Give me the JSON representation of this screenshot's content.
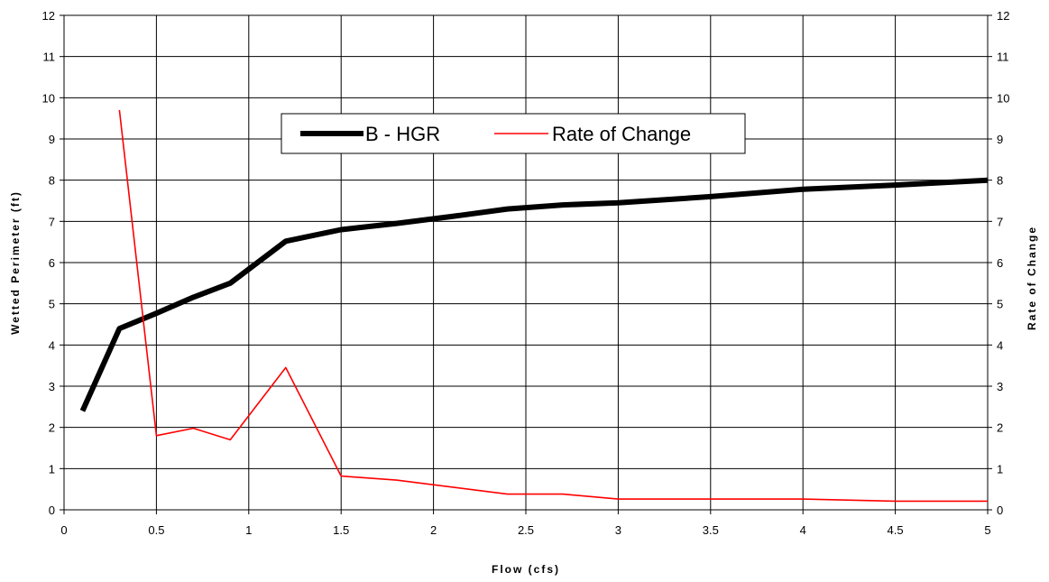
{
  "chart_data": {
    "type": "line",
    "xlabel": "Flow (cfs)",
    "ylabel": "Wetted Perimeter (ft)",
    "y2label": "Rate of Change",
    "xlim": [
      0,
      5
    ],
    "ylim": [
      0,
      12
    ],
    "y2lim": [
      0,
      12
    ],
    "x_ticks": [
      "0",
      "0.5",
      "1",
      "1.5",
      "2",
      "2.5",
      "3",
      "3.5",
      "4",
      "4.5",
      "5"
    ],
    "y_ticks": [
      "0",
      "1",
      "2",
      "3",
      "4",
      "5",
      "6",
      "7",
      "8",
      "9",
      "10",
      "11",
      "12"
    ],
    "grid": true,
    "legend": "top-center",
    "series": [
      {
        "name": "B - HGR",
        "color": "#000000",
        "axis": "left",
        "points": [
          [
            0.1,
            2.4
          ],
          [
            0.3,
            4.4
          ],
          [
            0.5,
            4.77
          ],
          [
            0.7,
            5.16
          ],
          [
            0.9,
            5.5
          ],
          [
            1.2,
            6.52
          ],
          [
            1.5,
            6.8
          ],
          [
            1.8,
            6.95
          ],
          [
            2.1,
            7.12
          ],
          [
            2.4,
            7.3
          ],
          [
            2.7,
            7.4
          ],
          [
            3.0,
            7.45
          ],
          [
            3.5,
            7.6
          ],
          [
            4.0,
            7.78
          ],
          [
            4.5,
            7.88
          ],
          [
            5.0,
            8.0
          ]
        ]
      },
      {
        "name": "Rate of Change",
        "color": "#ff0000",
        "axis": "right",
        "points": [
          [
            0.3,
            9.7
          ],
          [
            0.5,
            1.8
          ],
          [
            0.7,
            1.98
          ],
          [
            0.9,
            1.7
          ],
          [
            1.2,
            3.45
          ],
          [
            1.5,
            0.82
          ],
          [
            1.8,
            0.72
          ],
          [
            2.4,
            0.38
          ],
          [
            2.7,
            0.38
          ],
          [
            3.0,
            0.26
          ],
          [
            4.0,
            0.26
          ],
          [
            4.5,
            0.21
          ],
          [
            5.0,
            0.21
          ]
        ]
      }
    ]
  }
}
